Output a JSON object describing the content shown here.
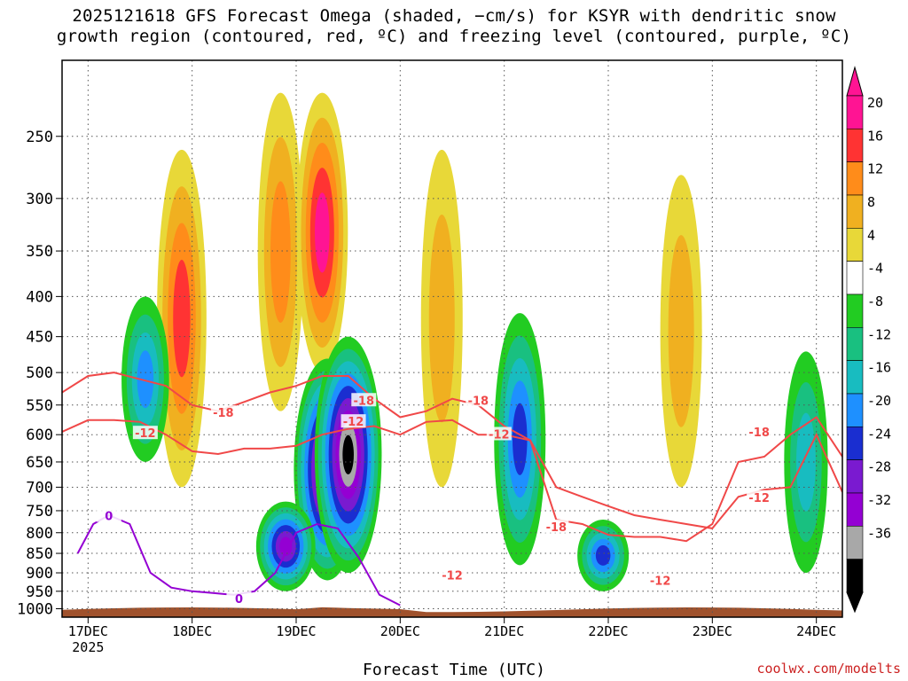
{
  "title_line1": "2025121618 GFS Forecast Omega (shaded, −cm/s) for KSYR with dendritic snow",
  "title_line2": "growth region (contoured, red, ºC) and freezing level (contoured, purple, ºC)",
  "xlabel": "Forecast Time (UTC)",
  "credit": "coolwx.com/modelts",
  "chart_data": {
    "type": "heatmap",
    "title": "2025121618 GFS Forecast Omega (shaded, −cm/s) for KSYR with dendritic snow growth region (contoured, red, ºC) and freezing level (contoured, purple, ºC)",
    "xlabel": "Forecast Time (UTC)",
    "ylabel": "",
    "y_axis": {
      "scale": "log-pressure",
      "range_hPa": [
        1025,
        200
      ],
      "ticks": [
        250,
        300,
        350,
        400,
        450,
        500,
        550,
        600,
        650,
        700,
        750,
        800,
        850,
        900,
        950,
        1000
      ]
    },
    "x_axis": {
      "unit": "days",
      "range": [
        16.75,
        24.25
      ],
      "ticks": [
        17,
        18,
        19,
        20,
        21,
        22,
        23,
        24
      ],
      "tick_labels": [
        "17DEC",
        "18DEC",
        "19DEC",
        "20DEC",
        "21DEC",
        "22DEC",
        "23DEC",
        "24DEC"
      ],
      "sublabel": "2025"
    },
    "grid": true,
    "colorbar": {
      "labels": [
        "20",
        "16",
        "12",
        "8",
        "4",
        "-4",
        "-8",
        "-12",
        "-16",
        "-20",
        "-24",
        "-28",
        "-32",
        "-36"
      ],
      "colors": [
        "#ff1493",
        "#ff3333",
        "#ff8c1a",
        "#f0b020",
        "#e8d838",
        "#ffffff",
        "#22cc22",
        "#19c080",
        "#18bcc0",
        "#1e90ff",
        "#1a2ed0",
        "#7a1ad0",
        "#9400d3",
        "#a8a8a8",
        "#000000"
      ]
    },
    "omega_features": [
      {
        "x": 17.9,
        "p": [
          260,
          700
        ],
        "omega": 18
      },
      {
        "x": 17.55,
        "p": [
          400,
          650
        ],
        "omega": -16
      },
      {
        "x": 18.85,
        "p": [
          220,
          560
        ],
        "omega": 14
      },
      {
        "x": 19.25,
        "p": [
          220,
          500
        ],
        "omega": 20
      },
      {
        "x": 19.3,
        "p": [
          480,
          920
        ],
        "omega": -36
      },
      {
        "x": 19.5,
        "p": [
          450,
          900
        ],
        "omega": -36
      },
      {
        "x": 18.9,
        "p": [
          730,
          950
        ],
        "omega": -28
      },
      {
        "x": 20.4,
        "p": [
          260,
          700
        ],
        "omega": 10
      },
      {
        "x": 21.15,
        "p": [
          420,
          880
        ],
        "omega": -20
      },
      {
        "x": 22.7,
        "p": [
          280,
          700
        ],
        "omega": 10
      },
      {
        "x": 21.95,
        "p": [
          770,
          950
        ],
        "omega": -20
      },
      {
        "x": 23.9,
        "p": [
          470,
          900
        ],
        "omega": -12
      }
    ],
    "contour_labels": [
      {
        "text": "-18",
        "x": 18.3,
        "p": 565,
        "color": "#f04848"
      },
      {
        "text": "-12",
        "x": 17.55,
        "p": 600,
        "color": "#f04848"
      },
      {
        "text": "-18",
        "x": 19.65,
        "p": 545,
        "color": "#f04848"
      },
      {
        "text": "-12",
        "x": 19.55,
        "p": 580,
        "color": "#f04848"
      },
      {
        "text": "-18",
        "x": 20.75,
        "p": 545,
        "color": "#f04848"
      },
      {
        "text": "-12",
        "x": 20.95,
        "p": 602,
        "color": "#f04848"
      },
      {
        "text": "-18",
        "x": 21.5,
        "p": 790,
        "color": "#f04848"
      },
      {
        "text": "-12",
        "x": 22.5,
        "p": 925,
        "color": "#f04848"
      },
      {
        "text": "-12",
        "x": 23.45,
        "p": 725,
        "color": "#f04848"
      },
      {
        "text": "-18",
        "x": 23.45,
        "p": 598,
        "color": "#f04848"
      },
      {
        "text": "-12",
        "x": 20.5,
        "p": 910,
        "color": "#f04848"
      },
      {
        "text": "0",
        "x": 17.2,
        "p": 765,
        "color": "#9400d3"
      },
      {
        "text": "0",
        "x": 18.45,
        "p": 975,
        "color": "#9400d3"
      }
    ],
    "series": [
      {
        "name": "-12",
        "color": "#f04848",
        "x": [
          16.75,
          17.0,
          17.25,
          17.5,
          17.75,
          18.0,
          18.25,
          18.5,
          18.75,
          19.0,
          19.25,
          19.5,
          19.75,
          20.0,
          20.25,
          20.5,
          20.75,
          21.0,
          21.25,
          21.5,
          21.75,
          22.0,
          22.25,
          22.5,
          22.75,
          23.0,
          23.25,
          23.5,
          23.75,
          24.0,
          24.25
        ],
        "p": [
          595,
          575,
          575,
          578,
          600,
          630,
          635,
          625,
          625,
          620,
          600,
          590,
          585,
          600,
          578,
          575,
          600,
          600,
          610,
          700,
          720,
          740,
          760,
          770,
          780,
          790,
          720,
          705,
          700,
          600,
          710
        ]
      },
      {
        "name": "-18",
        "color": "#f04848",
        "x": [
          16.75,
          17.0,
          17.25,
          17.5,
          17.75,
          18.0,
          18.25,
          18.5,
          18.75,
          19.0,
          19.25,
          19.5,
          19.75,
          20.0,
          20.25,
          20.5,
          20.75,
          21.0,
          21.25,
          21.5,
          21.75,
          22.0,
          22.25,
          22.5,
          22.75,
          23.0,
          23.25,
          23.5,
          23.75,
          24.0,
          24.25
        ],
        "p": [
          530,
          505,
          500,
          510,
          520,
          550,
          560,
          545,
          530,
          520,
          505,
          505,
          540,
          570,
          560,
          540,
          550,
          585,
          610,
          770,
          780,
          805,
          810,
          810,
          820,
          780,
          650,
          640,
          600,
          570,
          640
        ]
      },
      {
        "name": "0",
        "color": "#9400d3",
        "x": [
          16.9,
          17.05,
          17.2,
          17.4,
          17.6,
          17.8,
          18.0,
          18.2,
          18.4,
          18.6,
          18.8,
          19.0,
          19.2,
          19.4,
          19.6,
          19.8,
          20.0
        ],
        "p": [
          850,
          780,
          760,
          780,
          900,
          940,
          950,
          955,
          960,
          950,
          900,
          800,
          780,
          790,
          860,
          960,
          990
        ]
      }
    ]
  }
}
